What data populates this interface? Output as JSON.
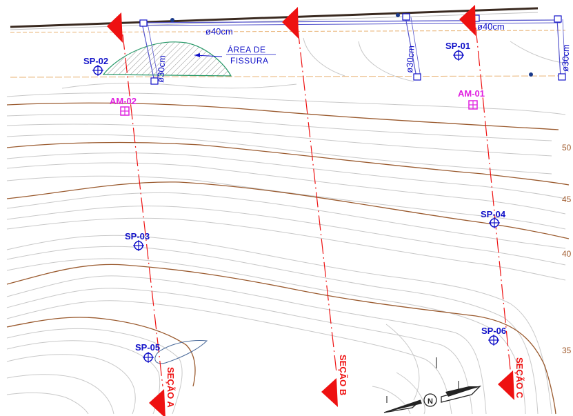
{
  "colors": {
    "background": "#ffffff",
    "contour_minor": "#c8c8c8",
    "contour_major": "#9a5a2e",
    "boreholes": "#1010c8",
    "samples": "#e020e0",
    "sections": "#ee1111",
    "road": "#3a2a20",
    "pipe": "#5555cc",
    "fissure_outline": "#2a9a6a",
    "fissure_hatch": "#8a8a8a"
  },
  "pipes": {
    "main_diameter_left": "ø40cm",
    "main_diameter_right": "ø40cm",
    "branch_diameters": [
      "ø30cm",
      "ø30cm",
      "ø30cm"
    ]
  },
  "fissure_area": {
    "label_line1": "ÁREA DE",
    "label_line2": "FISSURA"
  },
  "boreholes": [
    "SP-01",
    "SP-02",
    "SP-03",
    "SP-04",
    "SP-05",
    "SP-06"
  ],
  "samples": [
    "AM-01",
    "AM-02"
  ],
  "sections": [
    "SEÇÃO A",
    "SEÇÃO B",
    "SEÇÃO C"
  ],
  "elevations": [
    "50",
    "45",
    "40",
    "35"
  ],
  "north_arrow": {
    "symbol": "N"
  }
}
